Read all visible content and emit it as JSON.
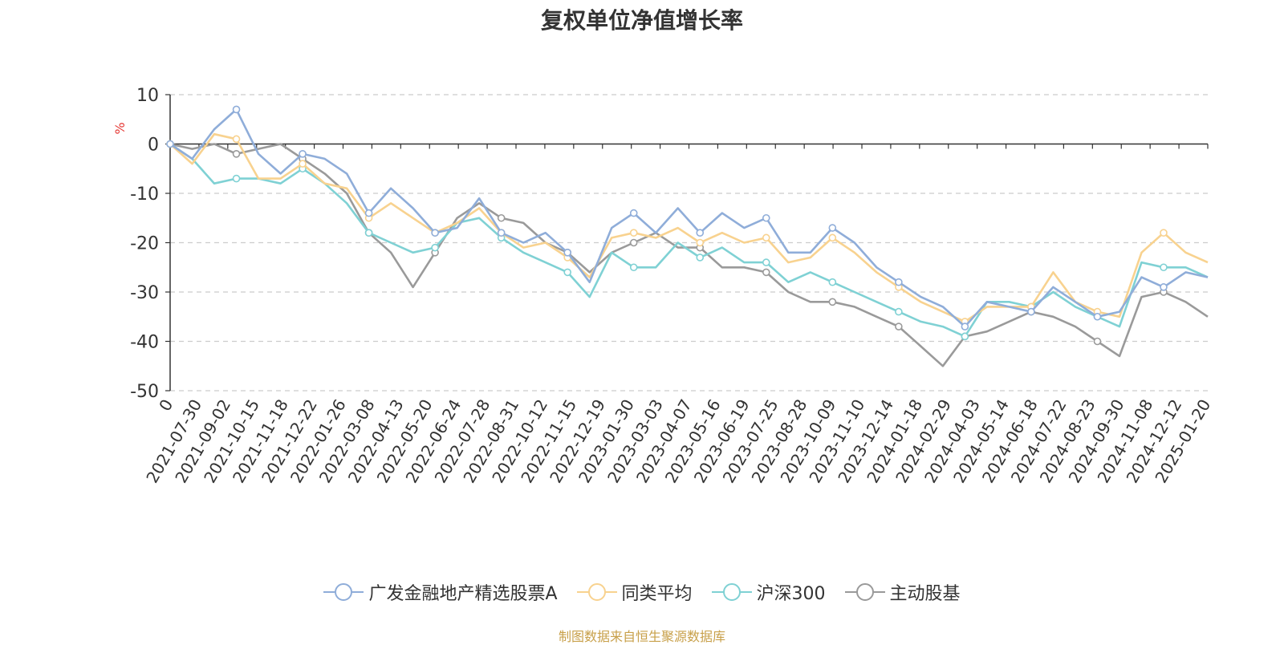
{
  "chart_data": {
    "type": "line",
    "title": "复权单位净值增长率",
    "ylabel": "%",
    "ylim": [
      -50,
      10
    ],
    "yticks": [
      "10",
      "0",
      "-10",
      "-20",
      "-30",
      "-40",
      "-50"
    ],
    "xtick_labels": [
      "0",
      "2021-07-30",
      "2021-09-02",
      "2021-10-15",
      "2021-11-18",
      "2021-12-22",
      "2022-01-26",
      "2022-03-08",
      "2022-04-13",
      "2022-05-20",
      "2022-06-24",
      "2022-07-28",
      "2022-08-31",
      "2022-10-12",
      "2022-11-15",
      "2022-12-19",
      "2023-01-30",
      "2023-03-03",
      "2023-04-07",
      "2023-05-16",
      "2023-06-19",
      "2023-07-25",
      "2023-08-28",
      "2023-10-09",
      "2023-11-10",
      "2023-12-14",
      "2024-01-18",
      "2024-02-29",
      "2024-04-03",
      "2024-05-14",
      "2024-06-18",
      "2024-07-22",
      "2024-08-23",
      "2024-09-30",
      "2024-11-08",
      "2024-12-12",
      "2025-01-20"
    ],
    "grid": true,
    "legend_position": "bottom",
    "series": [
      {
        "name": "广发金融地产精选股票A",
        "color": "#8fadd9",
        "values": [
          0,
          -3,
          3,
          7,
          -2,
          -6,
          -2,
          -3,
          -6,
          -14,
          -9,
          -13,
          -18,
          -17,
          -11,
          -18,
          -20,
          -18,
          -22,
          -28,
          -17,
          -14,
          -18,
          -13,
          -18,
          -14,
          -17,
          -15,
          -22,
          -22,
          -17,
          -20,
          -25,
          -28,
          -31,
          -33,
          -37,
          -32,
          -33,
          -34,
          -29,
          -32,
          -35,
          -34,
          -27,
          -29,
          -26,
          -27
        ]
      },
      {
        "name": "同类平均",
        "color": "#f8d28f",
        "values": [
          0,
          -4,
          2,
          1,
          -7,
          -7,
          -4,
          -8,
          -9,
          -15,
          -12,
          -15,
          -18,
          -16,
          -13,
          -18,
          -21,
          -20,
          -23,
          -27,
          -19,
          -18,
          -19,
          -17,
          -20,
          -18,
          -20,
          -19,
          -24,
          -23,
          -19,
          -22,
          -26,
          -29,
          -32,
          -34,
          -36,
          -33,
          -33,
          -33,
          -26,
          -32,
          -34,
          -35,
          -22,
          -18,
          -22,
          -24
        ]
      },
      {
        "name": "沪深300",
        "color": "#7fd1d4",
        "values": [
          0,
          -3,
          -8,
          -7,
          -7,
          -8,
          -5,
          -8,
          -12,
          -18,
          -20,
          -22,
          -21,
          -16,
          -15,
          -19,
          -22,
          -24,
          -26,
          -31,
          -22,
          -25,
          -25,
          -20,
          -23,
          -21,
          -24,
          -24,
          -28,
          -26,
          -28,
          -30,
          -32,
          -34,
          -36,
          -37,
          -39,
          -32,
          -32,
          -33,
          -30,
          -33,
          -35,
          -37,
          -24,
          -25,
          -25,
          -27
        ]
      },
      {
        "name": "主动股基",
        "color": "#9a9a9a",
        "values": [
          0,
          -1,
          0,
          -2,
          -1,
          0,
          -3,
          -6,
          -10,
          -18,
          -22,
          -29,
          -22,
          -15,
          -12,
          -15,
          -16,
          -20,
          -22,
          -26,
          -22,
          -20,
          -18,
          -21,
          -21,
          -25,
          -25,
          -26,
          -30,
          -32,
          -32,
          -33,
          -35,
          -37,
          -41,
          -45,
          -39,
          -38,
          -36,
          -34,
          -35,
          -37,
          -40,
          -43,
          -31,
          -30,
          -32,
          -35
        ]
      }
    ]
  },
  "legend": [
    {
      "label": "广发金融地产精选股票A",
      "color": "#8fadd9"
    },
    {
      "label": "同类平均",
      "color": "#f8d28f"
    },
    {
      "label": "沪深300",
      "color": "#7fd1d4"
    },
    {
      "label": "主动股基",
      "color": "#9a9a9a"
    }
  ],
  "footer": {
    "source": "制图数据来自恒生聚源数据库"
  },
  "colors": {
    "axis": "#333333",
    "grid": "#cccccc",
    "ylabel": "#e53935",
    "source": "#c8a04a"
  }
}
